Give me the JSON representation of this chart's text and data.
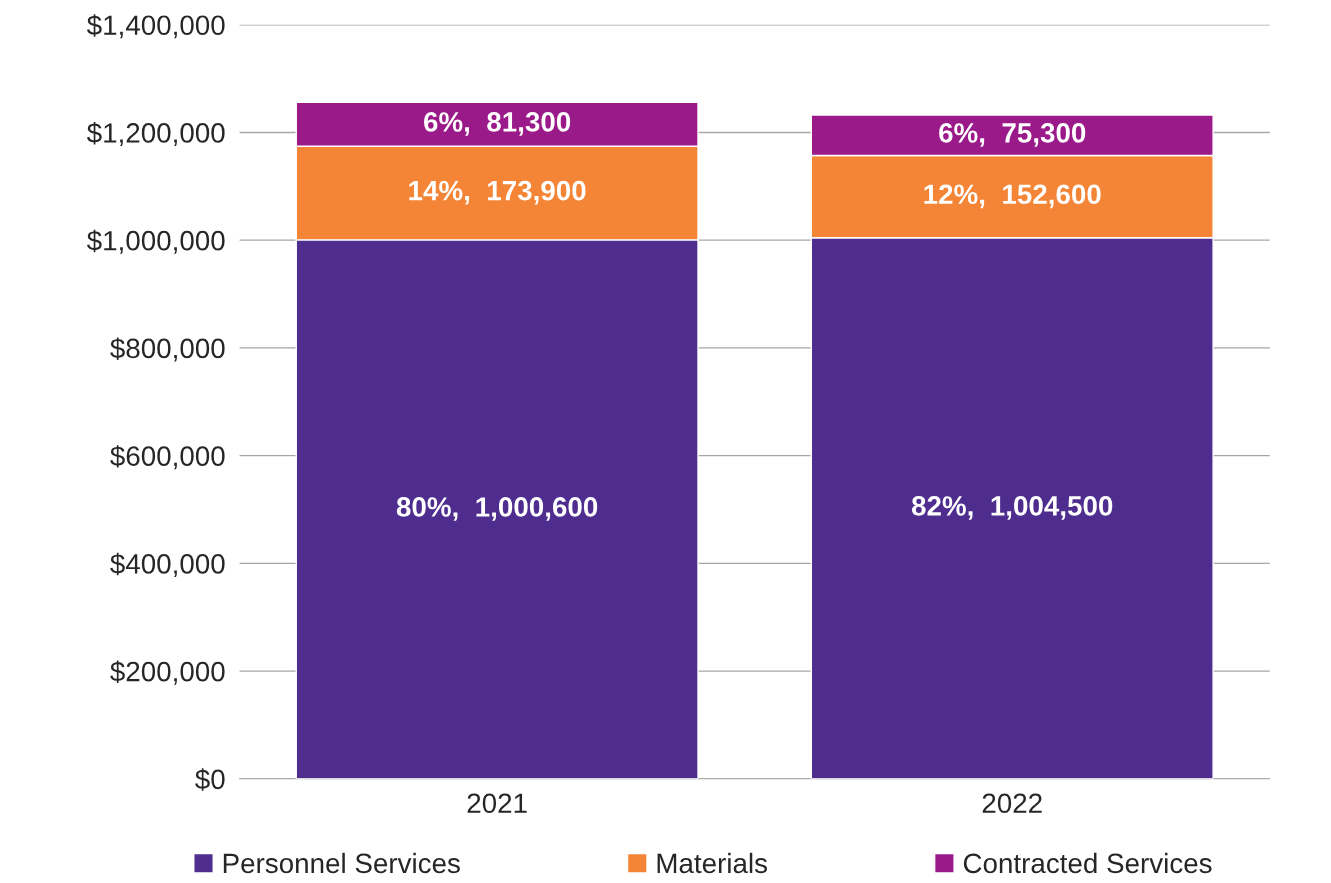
{
  "chart_data": {
    "type": "bar",
    "stacked": true,
    "categories": [
      "2021",
      "2022"
    ],
    "series": [
      {
        "name": "Personnel Services",
        "color": "#4e2d8f",
        "values": [
          1000600,
          1004500
        ],
        "value_labels": [
          "80%,  1,000,600",
          "82%,  1,004,500"
        ]
      },
      {
        "name": "Materials",
        "color": "#f58536",
        "values": [
          173900,
          152600
        ],
        "value_labels": [
          "14%,  173,900",
          "12%,  152,600"
        ]
      },
      {
        "name": "Contracted Services",
        "color": "#9b1a8a",
        "values": [
          81300,
          75300
        ],
        "value_labels": [
          "6%,  81,300",
          "6%,  75,300"
        ]
      }
    ],
    "ylim": [
      0,
      1400000
    ],
    "yticks": [
      {
        "value": 0,
        "label": "$0"
      },
      {
        "value": 200000,
        "label": "$200,000"
      },
      {
        "value": 400000,
        "label": "$400,000"
      },
      {
        "value": 600000,
        "label": "$600,000"
      },
      {
        "value": 800000,
        "label": "$800,000"
      },
      {
        "value": 1000000,
        "label": "$1,000,000"
      },
      {
        "value": 1200000,
        "label": "$1,200,000"
      },
      {
        "value": 1400000,
        "label": "$1,400,000"
      }
    ],
    "grid": "y",
    "legend": "bottom"
  }
}
